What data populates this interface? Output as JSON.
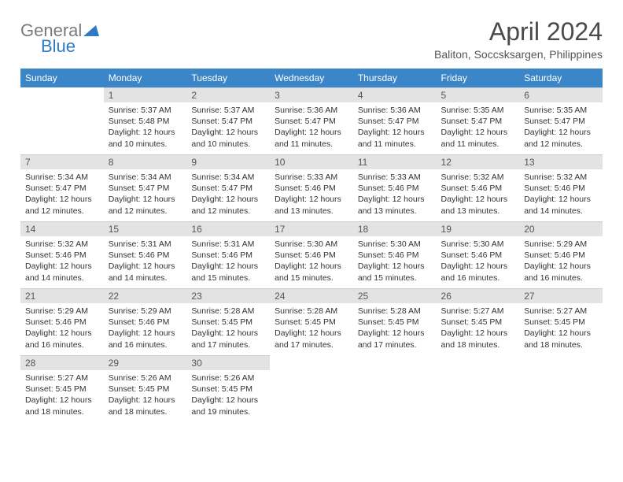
{
  "brand": {
    "top": "General",
    "bottom": "Blue"
  },
  "title": "April 2024",
  "location": "Baliton, Soccsksargen, Philippines",
  "colors": {
    "header_bg": "#3a86c8",
    "header_fg": "#ffffff",
    "daynum_bg": "#e3e3e3",
    "text": "#333333",
    "brand_gray": "#7a7a7a",
    "brand_blue": "#2e7ac3"
  },
  "daysOfWeek": [
    "Sunday",
    "Monday",
    "Tuesday",
    "Wednesday",
    "Thursday",
    "Friday",
    "Saturday"
  ],
  "weeks": [
    [
      null,
      {
        "n": "1",
        "sr": "Sunrise: 5:37 AM",
        "ss": "Sunset: 5:48 PM",
        "d1": "Daylight: 12 hours",
        "d2": "and 10 minutes."
      },
      {
        "n": "2",
        "sr": "Sunrise: 5:37 AM",
        "ss": "Sunset: 5:47 PM",
        "d1": "Daylight: 12 hours",
        "d2": "and 10 minutes."
      },
      {
        "n": "3",
        "sr": "Sunrise: 5:36 AM",
        "ss": "Sunset: 5:47 PM",
        "d1": "Daylight: 12 hours",
        "d2": "and 11 minutes."
      },
      {
        "n": "4",
        "sr": "Sunrise: 5:36 AM",
        "ss": "Sunset: 5:47 PM",
        "d1": "Daylight: 12 hours",
        "d2": "and 11 minutes."
      },
      {
        "n": "5",
        "sr": "Sunrise: 5:35 AM",
        "ss": "Sunset: 5:47 PM",
        "d1": "Daylight: 12 hours",
        "d2": "and 11 minutes."
      },
      {
        "n": "6",
        "sr": "Sunrise: 5:35 AM",
        "ss": "Sunset: 5:47 PM",
        "d1": "Daylight: 12 hours",
        "d2": "and 12 minutes."
      }
    ],
    [
      {
        "n": "7",
        "sr": "Sunrise: 5:34 AM",
        "ss": "Sunset: 5:47 PM",
        "d1": "Daylight: 12 hours",
        "d2": "and 12 minutes."
      },
      {
        "n": "8",
        "sr": "Sunrise: 5:34 AM",
        "ss": "Sunset: 5:47 PM",
        "d1": "Daylight: 12 hours",
        "d2": "and 12 minutes."
      },
      {
        "n": "9",
        "sr": "Sunrise: 5:34 AM",
        "ss": "Sunset: 5:47 PM",
        "d1": "Daylight: 12 hours",
        "d2": "and 12 minutes."
      },
      {
        "n": "10",
        "sr": "Sunrise: 5:33 AM",
        "ss": "Sunset: 5:46 PM",
        "d1": "Daylight: 12 hours",
        "d2": "and 13 minutes."
      },
      {
        "n": "11",
        "sr": "Sunrise: 5:33 AM",
        "ss": "Sunset: 5:46 PM",
        "d1": "Daylight: 12 hours",
        "d2": "and 13 minutes."
      },
      {
        "n": "12",
        "sr": "Sunrise: 5:32 AM",
        "ss": "Sunset: 5:46 PM",
        "d1": "Daylight: 12 hours",
        "d2": "and 13 minutes."
      },
      {
        "n": "13",
        "sr": "Sunrise: 5:32 AM",
        "ss": "Sunset: 5:46 PM",
        "d1": "Daylight: 12 hours",
        "d2": "and 14 minutes."
      }
    ],
    [
      {
        "n": "14",
        "sr": "Sunrise: 5:32 AM",
        "ss": "Sunset: 5:46 PM",
        "d1": "Daylight: 12 hours",
        "d2": "and 14 minutes."
      },
      {
        "n": "15",
        "sr": "Sunrise: 5:31 AM",
        "ss": "Sunset: 5:46 PM",
        "d1": "Daylight: 12 hours",
        "d2": "and 14 minutes."
      },
      {
        "n": "16",
        "sr": "Sunrise: 5:31 AM",
        "ss": "Sunset: 5:46 PM",
        "d1": "Daylight: 12 hours",
        "d2": "and 15 minutes."
      },
      {
        "n": "17",
        "sr": "Sunrise: 5:30 AM",
        "ss": "Sunset: 5:46 PM",
        "d1": "Daylight: 12 hours",
        "d2": "and 15 minutes."
      },
      {
        "n": "18",
        "sr": "Sunrise: 5:30 AM",
        "ss": "Sunset: 5:46 PM",
        "d1": "Daylight: 12 hours",
        "d2": "and 15 minutes."
      },
      {
        "n": "19",
        "sr": "Sunrise: 5:30 AM",
        "ss": "Sunset: 5:46 PM",
        "d1": "Daylight: 12 hours",
        "d2": "and 16 minutes."
      },
      {
        "n": "20",
        "sr": "Sunrise: 5:29 AM",
        "ss": "Sunset: 5:46 PM",
        "d1": "Daylight: 12 hours",
        "d2": "and 16 minutes."
      }
    ],
    [
      {
        "n": "21",
        "sr": "Sunrise: 5:29 AM",
        "ss": "Sunset: 5:46 PM",
        "d1": "Daylight: 12 hours",
        "d2": "and 16 minutes."
      },
      {
        "n": "22",
        "sr": "Sunrise: 5:29 AM",
        "ss": "Sunset: 5:46 PM",
        "d1": "Daylight: 12 hours",
        "d2": "and 16 minutes."
      },
      {
        "n": "23",
        "sr": "Sunrise: 5:28 AM",
        "ss": "Sunset: 5:45 PM",
        "d1": "Daylight: 12 hours",
        "d2": "and 17 minutes."
      },
      {
        "n": "24",
        "sr": "Sunrise: 5:28 AM",
        "ss": "Sunset: 5:45 PM",
        "d1": "Daylight: 12 hours",
        "d2": "and 17 minutes."
      },
      {
        "n": "25",
        "sr": "Sunrise: 5:28 AM",
        "ss": "Sunset: 5:45 PM",
        "d1": "Daylight: 12 hours",
        "d2": "and 17 minutes."
      },
      {
        "n": "26",
        "sr": "Sunrise: 5:27 AM",
        "ss": "Sunset: 5:45 PM",
        "d1": "Daylight: 12 hours",
        "d2": "and 18 minutes."
      },
      {
        "n": "27",
        "sr": "Sunrise: 5:27 AM",
        "ss": "Sunset: 5:45 PM",
        "d1": "Daylight: 12 hours",
        "d2": "and 18 minutes."
      }
    ],
    [
      {
        "n": "28",
        "sr": "Sunrise: 5:27 AM",
        "ss": "Sunset: 5:45 PM",
        "d1": "Daylight: 12 hours",
        "d2": "and 18 minutes."
      },
      {
        "n": "29",
        "sr": "Sunrise: 5:26 AM",
        "ss": "Sunset: 5:45 PM",
        "d1": "Daylight: 12 hours",
        "d2": "and 18 minutes."
      },
      {
        "n": "30",
        "sr": "Sunrise: 5:26 AM",
        "ss": "Sunset: 5:45 PM",
        "d1": "Daylight: 12 hours",
        "d2": "and 19 minutes."
      },
      null,
      null,
      null,
      null
    ]
  ]
}
